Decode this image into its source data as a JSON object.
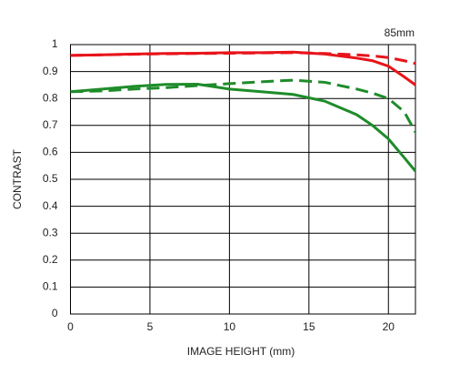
{
  "chart_data": {
    "type": "line",
    "title": "85mm",
    "xlabel": "IMAGE HEIGHT (mm)",
    "ylabel": "CONTRAST",
    "x": [
      0,
      2,
      4,
      6,
      8,
      10,
      12,
      14,
      16,
      18,
      19,
      20,
      21,
      21.7
    ],
    "series": [
      {
        "color": "#e8141b",
        "dashed": false,
        "values": [
          0.96,
          0.962,
          0.965,
          0.967,
          0.968,
          0.97,
          0.97,
          0.972,
          0.965,
          0.95,
          0.94,
          0.92,
          0.88,
          0.85
        ]
      },
      {
        "color": "#e8141b",
        "dashed": true,
        "values": [
          0.96,
          0.962,
          0.964,
          0.966,
          0.967,
          0.968,
          0.969,
          0.97,
          0.967,
          0.962,
          0.958,
          0.952,
          0.94,
          0.93
        ]
      },
      {
        "color": "#1e8c2a",
        "dashed": false,
        "values": [
          0.825,
          0.835,
          0.845,
          0.852,
          0.853,
          0.835,
          0.825,
          0.815,
          0.79,
          0.74,
          0.7,
          0.65,
          0.58,
          0.53
        ]
      },
      {
        "color": "#1e8c2a",
        "dashed": true,
        "values": [
          0.825,
          0.828,
          0.835,
          0.84,
          0.848,
          0.855,
          0.862,
          0.868,
          0.86,
          0.835,
          0.82,
          0.8,
          0.75,
          0.675
        ]
      }
    ],
    "xlim": [
      0,
      21.7
    ],
    "ylim": [
      0,
      1
    ],
    "xticks": [
      0,
      5,
      10,
      15,
      20
    ],
    "yticks": [
      0,
      0.1,
      0.2,
      0.3,
      0.4,
      0.5,
      0.6,
      0.7,
      0.8,
      0.9,
      1
    ],
    "grid": true
  }
}
